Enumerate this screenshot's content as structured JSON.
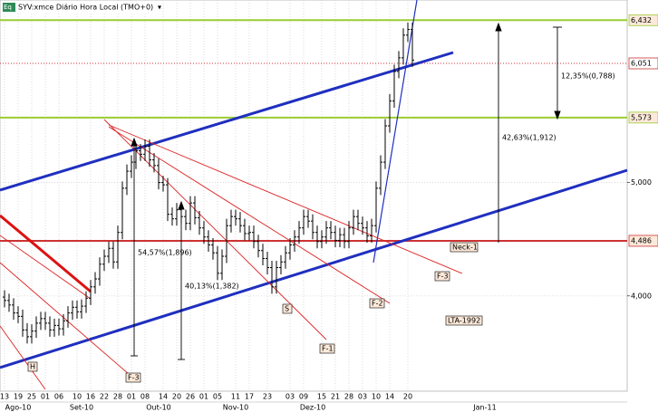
{
  "chart_data": {
    "type": "ohlc",
    "title": "SYV:xmce Diário Hora Local (TMO+0)",
    "icon": "Eq",
    "open": [
      3990,
      3960,
      3920,
      3850,
      3820,
      3700,
      3640,
      3690,
      3760,
      3800,
      3760,
      3700,
      3740,
      3710,
      3780,
      3850,
      3900,
      3860,
      3910,
      3980,
      4080,
      4150,
      4280,
      4350,
      4420,
      4300,
      4560,
      4950,
      5100,
      5180,
      5280,
      5250,
      5320,
      5200,
      5150,
      5000,
      4980,
      4720,
      4680,
      4760,
      4700,
      4640,
      4820,
      4690,
      4600,
      4520,
      4450,
      4380,
      4200,
      4350,
      4620,
      4700,
      4680,
      4620,
      4550,
      4560,
      4480,
      4400,
      4330,
      4250,
      4080,
      4250,
      4300,
      4380,
      4450,
      4520,
      4600,
      4700,
      4660,
      4560,
      4480,
      4520,
      4600,
      4560,
      4490,
      4540,
      4480,
      4600,
      4700,
      4640,
      4600,
      4530,
      4620,
      4950,
      5180,
      5500,
      5720,
      5980,
      6100,
      6300,
      6350
    ],
    "high": [
      4050,
      4020,
      3980,
      3910,
      3880,
      3760,
      3750,
      3820,
      3860,
      3860,
      3820,
      3800,
      3800,
      3840,
      3910,
      3960,
      3960,
      3970,
      4040,
      4140,
      4210,
      4340,
      4410,
      4480,
      4480,
      4620,
      5010,
      5160,
      5240,
      5340,
      5340,
      5380,
      5380,
      5260,
      5210,
      5060,
      5040,
      4780,
      4820,
      4820,
      4760,
      4880,
      4880,
      4750,
      4660,
      4580,
      4510,
      4440,
      4410,
      4680,
      4760,
      4760,
      4740,
      4680,
      4620,
      4620,
      4540,
      4460,
      4390,
      4310,
      4310,
      4360,
      4440,
      4510,
      4580,
      4660,
      4760,
      4760,
      4720,
      4620,
      4580,
      4660,
      4660,
      4620,
      4600,
      4600,
      4660,
      4760,
      4760,
      4700,
      4660,
      4680,
      5010,
      5240,
      5560,
      5780,
      6040,
      6160,
      6360,
      6410,
      6410
    ],
    "low": [
      3900,
      3860,
      3790,
      3760,
      3640,
      3580,
      3580,
      3630,
      3700,
      3700,
      3640,
      3640,
      3650,
      3650,
      3720,
      3790,
      3800,
      3800,
      3850,
      3920,
      4020,
      4090,
      4220,
      4290,
      4240,
      4240,
      4500,
      4890,
      5040,
      5120,
      5190,
      5190,
      5140,
      5090,
      4940,
      4920,
      4660,
      4620,
      4620,
      4640,
      4580,
      4580,
      4630,
      4540,
      4460,
      4390,
      4320,
      4140,
      4140,
      4290,
      4560,
      4620,
      4560,
      4490,
      4490,
      4420,
      4340,
      4270,
      4190,
      4020,
      4020,
      4190,
      4240,
      4320,
      4390,
      4460,
      4540,
      4600,
      4500,
      4420,
      4420,
      4460,
      4500,
      4430,
      4430,
      4420,
      4420,
      4540,
      4580,
      4540,
      4470,
      4470,
      4560,
      4890,
      5120,
      5440,
      5660,
      5920,
      6040,
      6240,
      6020
    ],
    "close": [
      3960,
      3920,
      3850,
      3820,
      3700,
      3640,
      3690,
      3760,
      3800,
      3760,
      3700,
      3740,
      3710,
      3780,
      3850,
      3900,
      3860,
      3910,
      3980,
      4080,
      4150,
      4280,
      4350,
      4420,
      4300,
      4560,
      4950,
      5100,
      5180,
      5280,
      5250,
      5320,
      5200,
      5150,
      5000,
      4980,
      4720,
      4680,
      4760,
      4700,
      4640,
      4820,
      4690,
      4600,
      4520,
      4450,
      4380,
      4200,
      4350,
      4620,
      4700,
      4680,
      4620,
      4550,
      4560,
      4480,
      4400,
      4330,
      4250,
      4080,
      4250,
      4300,
      4380,
      4450,
      4520,
      4600,
      4700,
      4660,
      4560,
      4480,
      4520,
      4600,
      4560,
      4490,
      4540,
      4480,
      4600,
      4700,
      4640,
      4600,
      4530,
      4620,
      4950,
      5180,
      5500,
      5720,
      5980,
      6100,
      6300,
      6350,
      6080
    ],
    "color": "#000000",
    "xlim": [
      -1,
      137.4
    ],
    "xticks": [
      {
        "value": 0,
        "label": "13"
      },
      {
        "value": 3,
        "label": "19"
      },
      {
        "value": 6,
        "label": "25"
      },
      {
        "value": 9,
        "label": "01"
      },
      {
        "value": 12,
        "label": "06"
      },
      {
        "value": 16,
        "label": "10"
      },
      {
        "value": 19,
        "label": "16"
      },
      {
        "value": 22,
        "label": "22"
      },
      {
        "value": 25,
        "label": "28"
      },
      {
        "value": 28,
        "label": "01"
      },
      {
        "value": 31,
        "label": "08"
      },
      {
        "value": 35,
        "label": "14"
      },
      {
        "value": 38,
        "label": "20"
      },
      {
        "value": 41,
        "label": "26"
      },
      {
        "value": 44,
        "label": "01"
      },
      {
        "value": 47,
        "label": "05"
      },
      {
        "value": 51,
        "label": "11"
      },
      {
        "value": 54,
        "label": "17"
      },
      {
        "value": 58,
        "label": "23"
      },
      {
        "value": 63,
        "label": "03"
      },
      {
        "value": 66,
        "label": "09"
      },
      {
        "value": 70,
        "label": "15"
      },
      {
        "value": 73,
        "label": "21"
      },
      {
        "value": 76,
        "label": "28"
      },
      {
        "value": 79,
        "label": "03"
      },
      {
        "value": 82,
        "label": "10"
      },
      {
        "value": 85,
        "label": "14"
      },
      {
        "value": 89,
        "label": "20"
      }
    ],
    "months": [
      {
        "value": 3,
        "label": "Ago-10"
      },
      {
        "value": 17,
        "label": "Set-10"
      },
      {
        "value": 34,
        "label": "Out-10"
      },
      {
        "value": 51,
        "label": "Nov-10"
      },
      {
        "value": 68,
        "label": "Dez-10"
      },
      {
        "value": 106,
        "label": "Jan-11"
      }
    ],
    "ylim": [
      3160,
      6610
    ],
    "yticks": [
      {
        "value": 4000,
        "label": "4,000"
      },
      {
        "value": 5000,
        "label": "5,000"
      }
    ],
    "levels": [
      {
        "value": 6432,
        "label": "6,432",
        "color": "#99cc33",
        "style": "solid"
      },
      {
        "value": 6051,
        "label": "6,051",
        "color": "#cc3333",
        "style": "dotted"
      },
      {
        "value": 5573,
        "label": "5,573",
        "color": "#99cc33",
        "style": "solid"
      },
      {
        "value": 4486,
        "label": "4,486",
        "color": "#cc3333",
        "style": "solid"
      }
    ],
    "annotations": [
      "12,35%(0,788)",
      "42,63%(1,912)",
      "54,57%(1,896)",
      "40,13%(1,382)",
      "Neck-1",
      "F-3",
      "F-2",
      "F-1",
      "S",
      "H",
      "F-3",
      "LTA-1992"
    ]
  }
}
